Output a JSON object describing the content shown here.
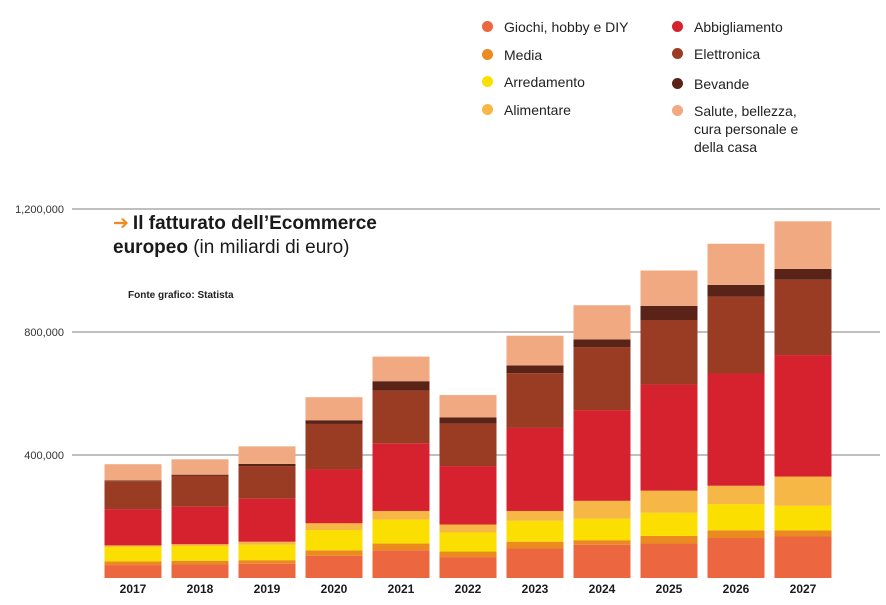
{
  "chart_data": {
    "type": "bar",
    "stacked": true,
    "title": "Il fatturato dell’Ecommerce europeo",
    "title_bold": "Il fatturato dell’Ecommerce",
    "title_bold2": "europeo",
    "title_rest": "(in miliardi di euro)",
    "source": "Fonte grafico: Statista",
    "categories": [
      "2017",
      "2018",
      "2019",
      "2020",
      "2021",
      "2022",
      "2023",
      "2024",
      "2025",
      "2026",
      "2027"
    ],
    "y_ticks": [
      400000,
      800000,
      1200000
    ],
    "y_tick_labels": [
      "400,000",
      "800,000",
      "1,200,000"
    ],
    "ylim": [
      0,
      1300000
    ],
    "grid": true,
    "legend_position": "top-right",
    "series": [
      {
        "name": "Giochi, hobby e DIY",
        "color": "#ec6640",
        "values": [
          42000,
          44000,
          46000,
          72000,
          90000,
          68000,
          96000,
          108000,
          112000,
          130000,
          135000
        ]
      },
      {
        "name": "Media",
        "color": "#ea8a1f",
        "values": [
          12000,
          12000,
          12000,
          18000,
          22000,
          18000,
          22000,
          15000,
          25000,
          25000,
          20000
        ]
      },
      {
        "name": "Arredamento",
        "color": "#fadf00",
        "values": [
          47000,
          48000,
          50000,
          66000,
          78000,
          62000,
          68000,
          70000,
          75000,
          85000,
          80000
        ]
      },
      {
        "name": "Alimentare",
        "color": "#f6b746",
        "values": [
          5000,
          6000,
          10000,
          22000,
          28000,
          26000,
          32000,
          58000,
          72000,
          60000,
          95000
        ]
      },
      {
        "name": "Abbigliamento",
        "color": "#d6212f",
        "values": [
          118000,
          122000,
          140000,
          175000,
          220000,
          190000,
          270000,
          295000,
          345000,
          365000,
          395000
        ]
      },
      {
        "name": "Elettronica",
        "color": "#9a3b24",
        "values": [
          91000,
          100000,
          106000,
          148000,
          172000,
          138000,
          178000,
          205000,
          210000,
          250000,
          245000
        ]
      },
      {
        "name": "Bevande",
        "color": "#5a2318",
        "values": [
          2000,
          4000,
          7000,
          12000,
          30000,
          20000,
          25000,
          25000,
          46000,
          38000,
          35000
        ]
      },
      {
        "name": "Salute, bellezza, cura personale e della casa",
        "color": "#f0a980",
        "values": [
          53000,
          50000,
          57000,
          75000,
          80000,
          73000,
          97000,
          111000,
          115000,
          134000,
          155000
        ]
      }
    ]
  }
}
